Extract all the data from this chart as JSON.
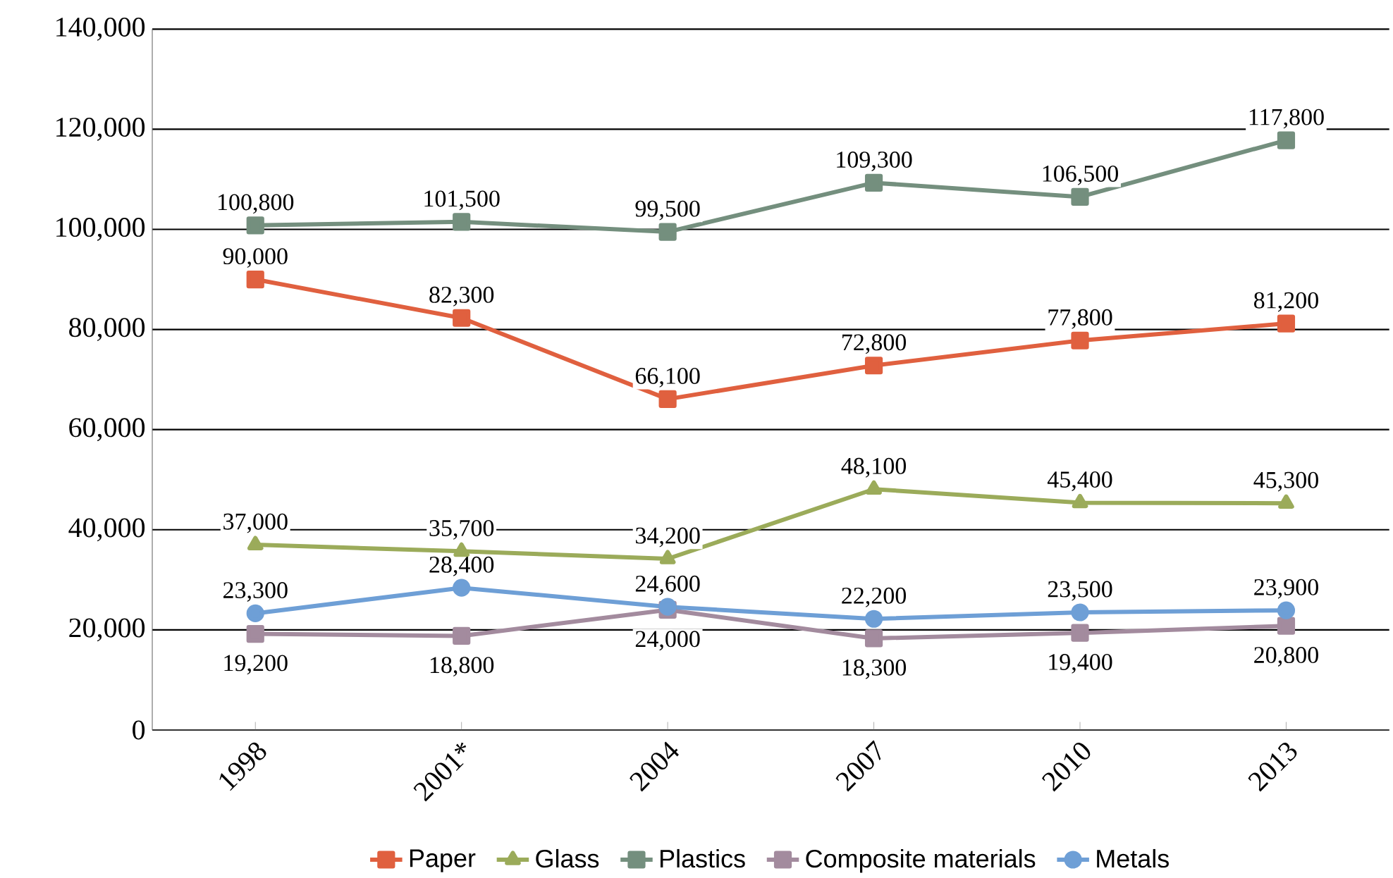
{
  "chart_data": {
    "type": "line",
    "categories": [
      "1998",
      "2001*",
      "2004",
      "2007",
      "2010",
      "2013"
    ],
    "ylim": [
      0,
      140000
    ],
    "yticks": [
      {
        "value": 0,
        "label": "0"
      },
      {
        "value": 20000,
        "label": "20,000"
      },
      {
        "value": 40000,
        "label": "40,000"
      },
      {
        "value": 60000,
        "label": "60,000"
      },
      {
        "value": 80000,
        "label": "80,000"
      },
      {
        "value": 100000,
        "label": "100,000"
      },
      {
        "value": 120000,
        "label": "120,000"
      },
      {
        "value": 140000,
        "label": "140,000"
      }
    ],
    "grid": "y",
    "legend": "bottom",
    "series": [
      {
        "name": "Paper",
        "color": "#e0603f",
        "marker": "square",
        "values": [
          90000,
          82300,
          66100,
          72800,
          77800,
          81200
        ],
        "value_labels": [
          "90,000",
          "82,300",
          "66,100",
          "72,800",
          "77,800",
          "81,200"
        ]
      },
      {
        "name": "Glass",
        "color": "#9bab5a",
        "marker": "triangle",
        "values": [
          37000,
          35700,
          34200,
          48100,
          45400,
          45300
        ],
        "value_labels": [
          "37,000",
          "35,700",
          "34,200",
          "48,100",
          "45,400",
          "45,300"
        ]
      },
      {
        "name": "Plastics",
        "color": "#748f7e",
        "marker": "square",
        "values": [
          100800,
          101500,
          99500,
          109300,
          106500,
          117800
        ],
        "value_labels": [
          "100,800",
          "101,500",
          "99,500",
          "109,300",
          "106,500",
          "117,800"
        ]
      },
      {
        "name": "Composite materials",
        "color": "#a38b9e",
        "marker": "square",
        "values": [
          19200,
          18800,
          24000,
          18300,
          19400,
          20800
        ],
        "value_labels": [
          "19,200",
          "18,800",
          "24,000",
          "18,300",
          "19,400",
          "20,800"
        ]
      },
      {
        "name": "Metals",
        "color": "#6e9fd6",
        "marker": "circle",
        "values": [
          23300,
          28400,
          24600,
          22200,
          23500,
          23900
        ],
        "value_labels": [
          "23,300",
          "28,400",
          "24,600",
          "22,200",
          "23,500",
          "23,900"
        ]
      }
    ]
  }
}
